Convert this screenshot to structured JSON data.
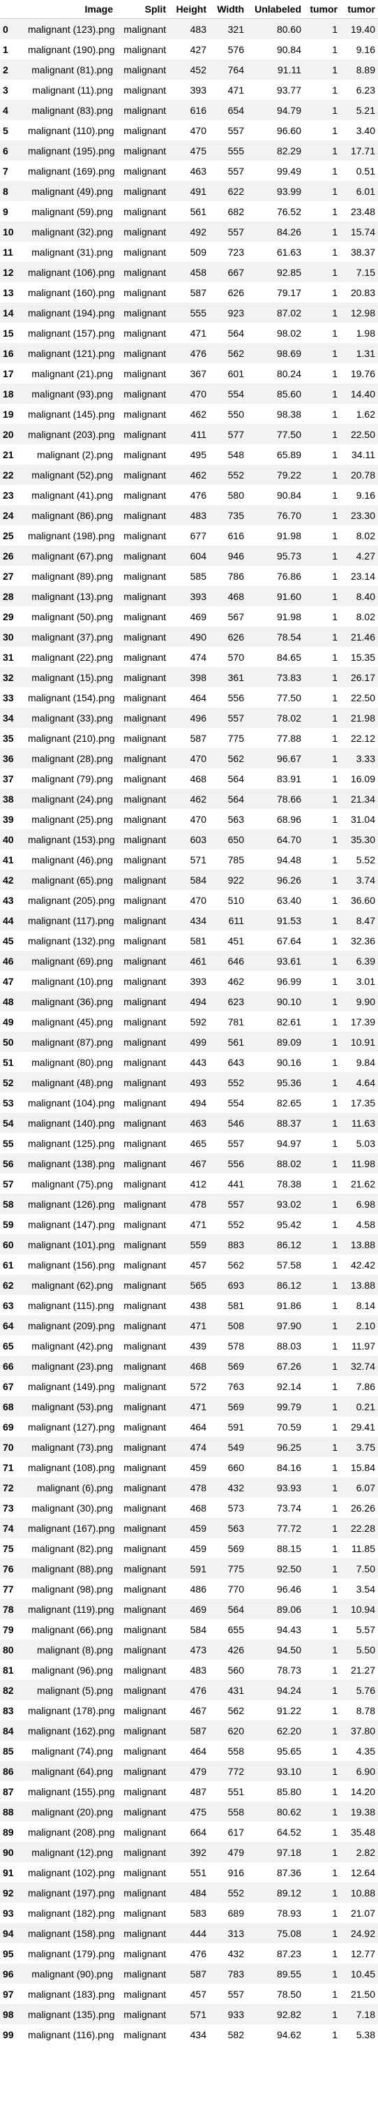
{
  "columns": [
    "",
    "Image",
    "Split",
    "Height",
    "Width",
    "Unlabeled",
    "tumor",
    "tumor"
  ],
  "rows": [
    [
      "0",
      "malignant (123).png",
      "malignant",
      "483",
      "321",
      "80.60",
      "1",
      "19.40"
    ],
    [
      "1",
      "malignant (190).png",
      "malignant",
      "427",
      "576",
      "90.84",
      "1",
      "9.16"
    ],
    [
      "2",
      "malignant (81).png",
      "malignant",
      "452",
      "764",
      "91.11",
      "1",
      "8.89"
    ],
    [
      "3",
      "malignant (11).png",
      "malignant",
      "393",
      "471",
      "93.77",
      "1",
      "6.23"
    ],
    [
      "4",
      "malignant (83).png",
      "malignant",
      "616",
      "654",
      "94.79",
      "1",
      "5.21"
    ],
    [
      "5",
      "malignant (110).png",
      "malignant",
      "470",
      "557",
      "96.60",
      "1",
      "3.40"
    ],
    [
      "6",
      "malignant (195).png",
      "malignant",
      "475",
      "555",
      "82.29",
      "1",
      "17.71"
    ],
    [
      "7",
      "malignant (169).png",
      "malignant",
      "463",
      "557",
      "99.49",
      "1",
      "0.51"
    ],
    [
      "8",
      "malignant (49).png",
      "malignant",
      "491",
      "622",
      "93.99",
      "1",
      "6.01"
    ],
    [
      "9",
      "malignant (59).png",
      "malignant",
      "561",
      "682",
      "76.52",
      "1",
      "23.48"
    ],
    [
      "10",
      "malignant (32).png",
      "malignant",
      "492",
      "557",
      "84.26",
      "1",
      "15.74"
    ],
    [
      "11",
      "malignant (31).png",
      "malignant",
      "509",
      "723",
      "61.63",
      "1",
      "38.37"
    ],
    [
      "12",
      "malignant (106).png",
      "malignant",
      "458",
      "667",
      "92.85",
      "1",
      "7.15"
    ],
    [
      "13",
      "malignant (160).png",
      "malignant",
      "587",
      "626",
      "79.17",
      "1",
      "20.83"
    ],
    [
      "14",
      "malignant (194).png",
      "malignant",
      "555",
      "923",
      "87.02",
      "1",
      "12.98"
    ],
    [
      "15",
      "malignant (157).png",
      "malignant",
      "471",
      "564",
      "98.02",
      "1",
      "1.98"
    ],
    [
      "16",
      "malignant (121).png",
      "malignant",
      "476",
      "562",
      "98.69",
      "1",
      "1.31"
    ],
    [
      "17",
      "malignant (21).png",
      "malignant",
      "367",
      "601",
      "80.24",
      "1",
      "19.76"
    ],
    [
      "18",
      "malignant (93).png",
      "malignant",
      "470",
      "554",
      "85.60",
      "1",
      "14.40"
    ],
    [
      "19",
      "malignant (145).png",
      "malignant",
      "462",
      "550",
      "98.38",
      "1",
      "1.62"
    ],
    [
      "20",
      "malignant (203).png",
      "malignant",
      "411",
      "577",
      "77.50",
      "1",
      "22.50"
    ],
    [
      "21",
      "malignant (2).png",
      "malignant",
      "495",
      "548",
      "65.89",
      "1",
      "34.11"
    ],
    [
      "22",
      "malignant (52).png",
      "malignant",
      "462",
      "552",
      "79.22",
      "1",
      "20.78"
    ],
    [
      "23",
      "malignant (41).png",
      "malignant",
      "476",
      "580",
      "90.84",
      "1",
      "9.16"
    ],
    [
      "24",
      "malignant (86).png",
      "malignant",
      "483",
      "735",
      "76.70",
      "1",
      "23.30"
    ],
    [
      "25",
      "malignant (198).png",
      "malignant",
      "677",
      "616",
      "91.98",
      "1",
      "8.02"
    ],
    [
      "26",
      "malignant (67).png",
      "malignant",
      "604",
      "946",
      "95.73",
      "1",
      "4.27"
    ],
    [
      "27",
      "malignant (89).png",
      "malignant",
      "585",
      "786",
      "76.86",
      "1",
      "23.14"
    ],
    [
      "28",
      "malignant (13).png",
      "malignant",
      "393",
      "468",
      "91.60",
      "1",
      "8.40"
    ],
    [
      "29",
      "malignant (50).png",
      "malignant",
      "469",
      "567",
      "91.98",
      "1",
      "8.02"
    ],
    [
      "30",
      "malignant (37).png",
      "malignant",
      "490",
      "626",
      "78.54",
      "1",
      "21.46"
    ],
    [
      "31",
      "malignant (22).png",
      "malignant",
      "474",
      "570",
      "84.65",
      "1",
      "15.35"
    ],
    [
      "32",
      "malignant (15).png",
      "malignant",
      "398",
      "361",
      "73.83",
      "1",
      "26.17"
    ],
    [
      "33",
      "malignant (154).png",
      "malignant",
      "464",
      "556",
      "77.50",
      "1",
      "22.50"
    ],
    [
      "34",
      "malignant (33).png",
      "malignant",
      "496",
      "557",
      "78.02",
      "1",
      "21.98"
    ],
    [
      "35",
      "malignant (210).png",
      "malignant",
      "587",
      "775",
      "77.88",
      "1",
      "22.12"
    ],
    [
      "36",
      "malignant (28).png",
      "malignant",
      "470",
      "562",
      "96.67",
      "1",
      "3.33"
    ],
    [
      "37",
      "malignant (79).png",
      "malignant",
      "468",
      "564",
      "83.91",
      "1",
      "16.09"
    ],
    [
      "38",
      "malignant (24).png",
      "malignant",
      "462",
      "564",
      "78.66",
      "1",
      "21.34"
    ],
    [
      "39",
      "malignant (25).png",
      "malignant",
      "470",
      "563",
      "68.96",
      "1",
      "31.04"
    ],
    [
      "40",
      "malignant (153).png",
      "malignant",
      "603",
      "650",
      "64.70",
      "1",
      "35.30"
    ],
    [
      "41",
      "malignant (46).png",
      "malignant",
      "571",
      "785",
      "94.48",
      "1",
      "5.52"
    ],
    [
      "42",
      "malignant (65).png",
      "malignant",
      "584",
      "922",
      "96.26",
      "1",
      "3.74"
    ],
    [
      "43",
      "malignant (205).png",
      "malignant",
      "470",
      "510",
      "63.40",
      "1",
      "36.60"
    ],
    [
      "44",
      "malignant (117).png",
      "malignant",
      "434",
      "611",
      "91.53",
      "1",
      "8.47"
    ],
    [
      "45",
      "malignant (132).png",
      "malignant",
      "581",
      "451",
      "67.64",
      "1",
      "32.36"
    ],
    [
      "46",
      "malignant (69).png",
      "malignant",
      "461",
      "646",
      "93.61",
      "1",
      "6.39"
    ],
    [
      "47",
      "malignant (10).png",
      "malignant",
      "393",
      "462",
      "96.99",
      "1",
      "3.01"
    ],
    [
      "48",
      "malignant (36).png",
      "malignant",
      "494",
      "623",
      "90.10",
      "1",
      "9.90"
    ],
    [
      "49",
      "malignant (45).png",
      "malignant",
      "592",
      "781",
      "82.61",
      "1",
      "17.39"
    ],
    [
      "50",
      "malignant (87).png",
      "malignant",
      "499",
      "561",
      "89.09",
      "1",
      "10.91"
    ],
    [
      "51",
      "malignant (80).png",
      "malignant",
      "443",
      "643",
      "90.16",
      "1",
      "9.84"
    ],
    [
      "52",
      "malignant (48).png",
      "malignant",
      "493",
      "552",
      "95.36",
      "1",
      "4.64"
    ],
    [
      "53",
      "malignant (104).png",
      "malignant",
      "494",
      "554",
      "82.65",
      "1",
      "17.35"
    ],
    [
      "54",
      "malignant (140).png",
      "malignant",
      "463",
      "546",
      "88.37",
      "1",
      "11.63"
    ],
    [
      "55",
      "malignant (125).png",
      "malignant",
      "465",
      "557",
      "94.97",
      "1",
      "5.03"
    ],
    [
      "56",
      "malignant (138).png",
      "malignant",
      "467",
      "556",
      "88.02",
      "1",
      "11.98"
    ],
    [
      "57",
      "malignant (75).png",
      "malignant",
      "412",
      "441",
      "78.38",
      "1",
      "21.62"
    ],
    [
      "58",
      "malignant (126).png",
      "malignant",
      "478",
      "557",
      "93.02",
      "1",
      "6.98"
    ],
    [
      "59",
      "malignant (147).png",
      "malignant",
      "471",
      "552",
      "95.42",
      "1",
      "4.58"
    ],
    [
      "60",
      "malignant (101).png",
      "malignant",
      "559",
      "883",
      "86.12",
      "1",
      "13.88"
    ],
    [
      "61",
      "malignant (156).png",
      "malignant",
      "457",
      "562",
      "57.58",
      "1",
      "42.42"
    ],
    [
      "62",
      "malignant (62).png",
      "malignant",
      "565",
      "693",
      "86.12",
      "1",
      "13.88"
    ],
    [
      "63",
      "malignant (115).png",
      "malignant",
      "438",
      "581",
      "91.86",
      "1",
      "8.14"
    ],
    [
      "64",
      "malignant (209).png",
      "malignant",
      "471",
      "508",
      "97.90",
      "1",
      "2.10"
    ],
    [
      "65",
      "malignant (42).png",
      "malignant",
      "439",
      "578",
      "88.03",
      "1",
      "11.97"
    ],
    [
      "66",
      "malignant (23).png",
      "malignant",
      "468",
      "569",
      "67.26",
      "1",
      "32.74"
    ],
    [
      "67",
      "malignant (149).png",
      "malignant",
      "572",
      "763",
      "92.14",
      "1",
      "7.86"
    ],
    [
      "68",
      "malignant (53).png",
      "malignant",
      "471",
      "569",
      "99.79",
      "1",
      "0.21"
    ],
    [
      "69",
      "malignant (127).png",
      "malignant",
      "464",
      "591",
      "70.59",
      "1",
      "29.41"
    ],
    [
      "70",
      "malignant (73).png",
      "malignant",
      "474",
      "549",
      "96.25",
      "1",
      "3.75"
    ],
    [
      "71",
      "malignant (108).png",
      "malignant",
      "459",
      "660",
      "84.16",
      "1",
      "15.84"
    ],
    [
      "72",
      "malignant (6).png",
      "malignant",
      "478",
      "432",
      "93.93",
      "1",
      "6.07"
    ],
    [
      "73",
      "malignant (30).png",
      "malignant",
      "468",
      "573",
      "73.74",
      "1",
      "26.26"
    ],
    [
      "74",
      "malignant (167).png",
      "malignant",
      "459",
      "563",
      "77.72",
      "1",
      "22.28"
    ],
    [
      "75",
      "malignant (82).png",
      "malignant",
      "459",
      "569",
      "88.15",
      "1",
      "11.85"
    ],
    [
      "76",
      "malignant (88).png",
      "malignant",
      "591",
      "775",
      "92.50",
      "1",
      "7.50"
    ],
    [
      "77",
      "malignant (98).png",
      "malignant",
      "486",
      "770",
      "96.46",
      "1",
      "3.54"
    ],
    [
      "78",
      "malignant (119).png",
      "malignant",
      "469",
      "564",
      "89.06",
      "1",
      "10.94"
    ],
    [
      "79",
      "malignant (66).png",
      "malignant",
      "584",
      "655",
      "94.43",
      "1",
      "5.57"
    ],
    [
      "80",
      "malignant (8).png",
      "malignant",
      "473",
      "426",
      "94.50",
      "1",
      "5.50"
    ],
    [
      "81",
      "malignant (96).png",
      "malignant",
      "483",
      "560",
      "78.73",
      "1",
      "21.27"
    ],
    [
      "82",
      "malignant (5).png",
      "malignant",
      "476",
      "431",
      "94.24",
      "1",
      "5.76"
    ],
    [
      "83",
      "malignant (178).png",
      "malignant",
      "467",
      "562",
      "91.22",
      "1",
      "8.78"
    ],
    [
      "84",
      "malignant (162).png",
      "malignant",
      "587",
      "620",
      "62.20",
      "1",
      "37.80"
    ],
    [
      "85",
      "malignant (74).png",
      "malignant",
      "464",
      "558",
      "95.65",
      "1",
      "4.35"
    ],
    [
      "86",
      "malignant (64).png",
      "malignant",
      "479",
      "772",
      "93.10",
      "1",
      "6.90"
    ],
    [
      "87",
      "malignant (155).png",
      "malignant",
      "487",
      "551",
      "85.80",
      "1",
      "14.20"
    ],
    [
      "88",
      "malignant (20).png",
      "malignant",
      "475",
      "558",
      "80.62",
      "1",
      "19.38"
    ],
    [
      "89",
      "malignant (208).png",
      "malignant",
      "664",
      "617",
      "64.52",
      "1",
      "35.48"
    ],
    [
      "90",
      "malignant (12).png",
      "malignant",
      "392",
      "479",
      "97.18",
      "1",
      "2.82"
    ],
    [
      "91",
      "malignant (102).png",
      "malignant",
      "551",
      "916",
      "87.36",
      "1",
      "12.64"
    ],
    [
      "92",
      "malignant (197).png",
      "malignant",
      "484",
      "552",
      "89.12",
      "1",
      "10.88"
    ],
    [
      "93",
      "malignant (182).png",
      "malignant",
      "583",
      "689",
      "78.93",
      "1",
      "21.07"
    ],
    [
      "94",
      "malignant (158).png",
      "malignant",
      "444",
      "313",
      "75.08",
      "1",
      "24.92"
    ],
    [
      "95",
      "malignant (179).png",
      "malignant",
      "476",
      "432",
      "87.23",
      "1",
      "12.77"
    ],
    [
      "96",
      "malignant (90).png",
      "malignant",
      "587",
      "783",
      "89.55",
      "1",
      "10.45"
    ],
    [
      "97",
      "malignant (183).png",
      "malignant",
      "457",
      "557",
      "78.50",
      "1",
      "21.50"
    ],
    [
      "98",
      "malignant (135).png",
      "malignant",
      "571",
      "933",
      "92.82",
      "1",
      "7.18"
    ],
    [
      "99",
      "malignant (116).png",
      "malignant",
      "434",
      "582",
      "94.62",
      "1",
      "5.38"
    ]
  ]
}
